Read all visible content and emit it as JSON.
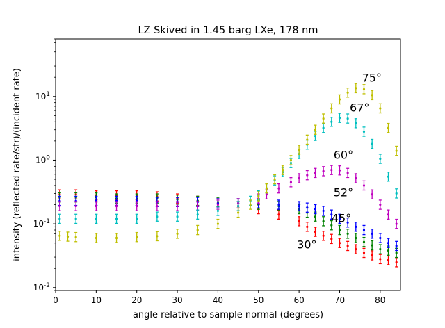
{
  "chart_data": {
    "type": "scatter",
    "title": "LZ Skived in 1.45 barg LXe, 178 nm",
    "xlabel": "angle relative to sample normal (degrees)",
    "ylabel": "intensity (reflected rate/str)/(incident rate)",
    "xlim": [
      0,
      85
    ],
    "ylim": [
      0.009,
      80
    ],
    "yscale": "log",
    "grid": false,
    "x_ticks": [
      0,
      10,
      20,
      30,
      40,
      50,
      60,
      70,
      80
    ],
    "x_tick_labels": [
      "0",
      "10",
      "20",
      "30",
      "40",
      "50",
      "60",
      "70",
      "80"
    ],
    "y_ticks": [
      0.01,
      0.1,
      1,
      10
    ],
    "y_tick_labels": [
      "10^-2",
      "10^-1",
      "10^0",
      "10^1"
    ],
    "series": [
      {
        "name": "30°",
        "color": "#ff0000",
        "x": [
          1,
          5,
          10,
          15,
          20,
          25,
          30,
          35,
          40,
          45,
          50,
          55,
          60,
          62,
          64,
          66,
          68,
          70,
          72,
          74,
          76,
          78,
          80,
          82,
          84
        ],
        "y": [
          0.29,
          0.29,
          0.28,
          0.28,
          0.28,
          0.27,
          0.25,
          0.23,
          0.21,
          0.19,
          0.17,
          0.14,
          0.11,
          0.09,
          0.075,
          0.065,
          0.058,
          0.05,
          0.045,
          0.04,
          0.035,
          0.032,
          0.028,
          0.027,
          0.025
        ]
      },
      {
        "name": "45°",
        "color": "#008000",
        "x": [
          1,
          5,
          10,
          15,
          20,
          25,
          30,
          35,
          40,
          45,
          50,
          55,
          60,
          62,
          64,
          66,
          68,
          70,
          72,
          74,
          76,
          78,
          80,
          82,
          84
        ],
        "y": [
          0.26,
          0.26,
          0.26,
          0.25,
          0.25,
          0.25,
          0.24,
          0.23,
          0.22,
          0.21,
          0.2,
          0.19,
          0.17,
          0.15,
          0.13,
          0.11,
          0.095,
          0.08,
          0.07,
          0.06,
          0.052,
          0.046,
          0.04,
          0.038,
          0.035
        ]
      },
      {
        "name": "52°",
        "color": "#0000ff",
        "x": [
          1,
          5,
          10,
          15,
          20,
          25,
          30,
          35,
          40,
          45,
          50,
          55,
          60,
          62,
          64,
          66,
          68,
          70,
          72,
          74,
          76,
          78,
          80,
          82,
          84
        ],
        "y": [
          0.23,
          0.23,
          0.23,
          0.23,
          0.23,
          0.22,
          0.22,
          0.22,
          0.21,
          0.21,
          0.21,
          0.2,
          0.19,
          0.18,
          0.17,
          0.16,
          0.14,
          0.12,
          0.105,
          0.09,
          0.08,
          0.07,
          0.06,
          0.05,
          0.045
        ]
      },
      {
        "name": "60°",
        "color": "#bf00bf",
        "x": [
          1,
          5,
          10,
          15,
          20,
          25,
          30,
          35,
          40,
          45,
          50,
          52,
          55,
          58,
          60,
          62,
          64,
          66,
          68,
          70,
          72,
          74,
          76,
          78,
          80,
          82,
          84
        ],
        "y": [
          0.19,
          0.19,
          0.19,
          0.19,
          0.19,
          0.19,
          0.19,
          0.19,
          0.2,
          0.21,
          0.25,
          0.29,
          0.36,
          0.45,
          0.52,
          0.58,
          0.63,
          0.67,
          0.7,
          0.69,
          0.63,
          0.52,
          0.4,
          0.29,
          0.2,
          0.14,
          0.1
        ]
      },
      {
        "name": "67°",
        "color": "#00bfbf",
        "x": [
          1,
          5,
          10,
          15,
          20,
          25,
          30,
          35,
          40,
          45,
          48,
          50,
          52,
          54,
          56,
          58,
          60,
          62,
          64,
          66,
          68,
          70,
          72,
          74,
          76,
          78,
          80,
          82,
          84
        ],
        "y": [
          0.12,
          0.12,
          0.12,
          0.12,
          0.12,
          0.13,
          0.13,
          0.14,
          0.16,
          0.19,
          0.23,
          0.28,
          0.36,
          0.48,
          0.65,
          0.9,
          1.25,
          1.75,
          2.4,
          3.2,
          4.0,
          4.6,
          4.5,
          3.8,
          2.8,
          1.8,
          1.05,
          0.55,
          0.3
        ]
      },
      {
        "name": "75°",
        "color": "#bfbf00",
        "x": [
          1,
          3,
          5,
          10,
          15,
          20,
          25,
          30,
          35,
          40,
          45,
          48,
          50,
          52,
          54,
          56,
          58,
          60,
          62,
          64,
          66,
          68,
          70,
          72,
          74,
          76,
          78,
          80,
          82,
          84
        ],
        "y": [
          0.065,
          0.063,
          0.062,
          0.06,
          0.06,
          0.062,
          0.064,
          0.07,
          0.08,
          0.1,
          0.15,
          0.2,
          0.27,
          0.36,
          0.5,
          0.7,
          1.0,
          1.45,
          2.1,
          3.0,
          4.5,
          6.5,
          9.0,
          11.5,
          13.5,
          13.0,
          10.5,
          6.5,
          3.2,
          1.4
        ]
      }
    ],
    "annotations": [
      {
        "text": "75°",
        "x": 75.5,
        "y": 17
      },
      {
        "text": "67°",
        "x": 72.5,
        "y": 5.8
      },
      {
        "text": "60°",
        "x": 68.5,
        "y": 1.05
      },
      {
        "text": "52°",
        "x": 68.5,
        "y": 0.27
      },
      {
        "text": "45°",
        "x": 68,
        "y": 0.107
      },
      {
        "text": "30°",
        "x": 59.5,
        "y": 0.041
      }
    ]
  }
}
